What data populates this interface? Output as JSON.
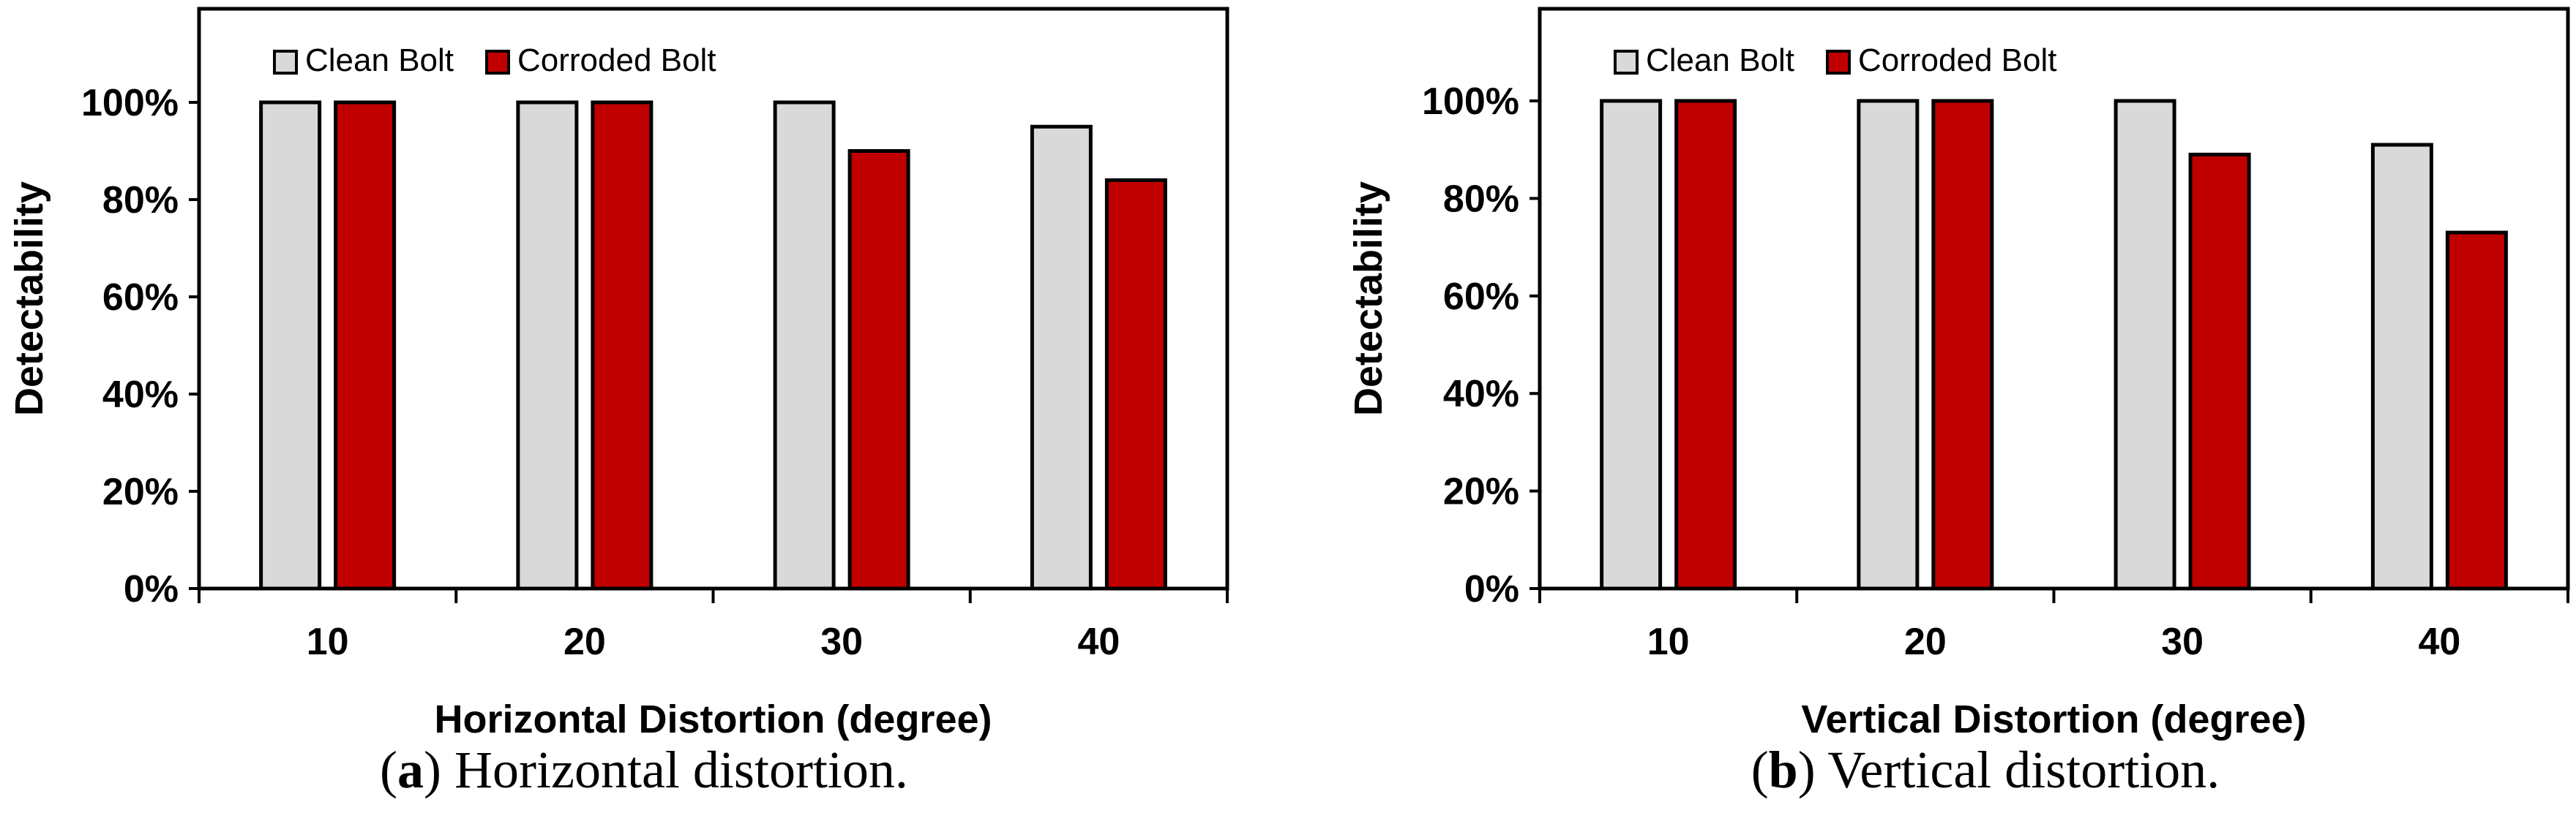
{
  "chart_data": [
    {
      "type": "bar",
      "categories": [
        "10",
        "20",
        "30",
        "40"
      ],
      "series": [
        {
          "name": "Clean Bolt",
          "values": [
            100,
            100,
            100,
            95
          ],
          "color": "#d9d9d9"
        },
        {
          "name": "Corroded Bolt",
          "values": [
            100,
            100,
            90,
            84
          ],
          "color": "#c00000"
        }
      ],
      "xlabel": "Horizontal Distortion (degree)",
      "ylabel": "Detectability",
      "ylim": [
        0,
        100
      ],
      "yticks": [
        "0%",
        "20%",
        "40%",
        "60%",
        "80%",
        "100%"
      ],
      "legend": "top-left",
      "grid": false
    },
    {
      "type": "bar",
      "categories": [
        "10",
        "20",
        "30",
        "40"
      ],
      "series": [
        {
          "name": "Clean Bolt",
          "values": [
            100,
            100,
            100,
            91
          ],
          "color": "#d9d9d9"
        },
        {
          "name": "Corroded Bolt",
          "values": [
            100,
            100,
            89,
            73
          ],
          "color": "#c00000"
        }
      ],
      "xlabel": "Vertical Distortion (degree)",
      "ylabel": "Detectability",
      "ylim": [
        0,
        100
      ],
      "yticks": [
        "0%",
        "20%",
        "40%",
        "60%",
        "80%",
        "100%"
      ],
      "legend": "top-left",
      "grid": false
    }
  ],
  "captions": [
    {
      "letter": "a",
      "text": " Horizontal distortion."
    },
    {
      "letter": "b",
      "text": " Vertical distortion."
    }
  ]
}
